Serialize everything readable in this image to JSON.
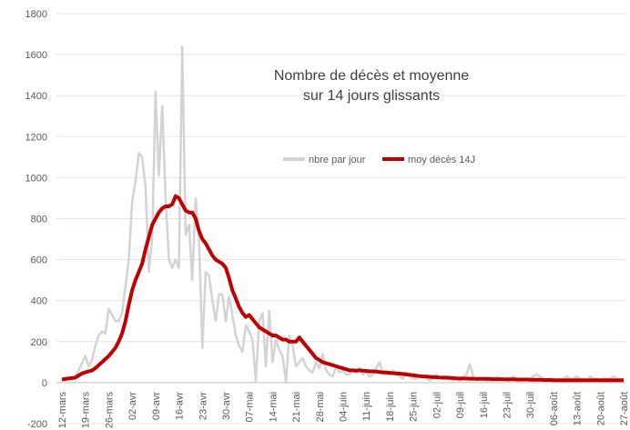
{
  "chart_data": {
    "type": "line",
    "title_lines": [
      "Nombre de décès et moyenne",
      "sur 14 jours glissants"
    ],
    "ylim": [
      -200,
      1800
    ],
    "ytick_step": 200,
    "xtick_labels": [
      "12-mars",
      "19-mars",
      "26-mars",
      "02-avr",
      "09-avr",
      "16-avr",
      "23-avr",
      "30-avr",
      "07-mai",
      "14-mai",
      "21-mai",
      "28-mai",
      "04-juin",
      "11-juin",
      "18-juin",
      "25-juin",
      "02-juil",
      "09-juil",
      "16-juil",
      "23-juil",
      "30-juil",
      "06-août",
      "13-août",
      "20-août",
      "27-août"
    ],
    "grid": true,
    "legend_position": "center-right",
    "colors": {
      "daily": "#d3d3d3",
      "avg": "#c00000"
    },
    "series": [
      {
        "name": "nbre par jour",
        "key": "daily",
        "start_index": 0,
        "values": [
          18,
          10,
          25,
          15,
          30,
          60,
          95,
          130,
          80,
          110,
          180,
          230,
          250,
          240,
          360,
          330,
          300,
          300,
          340,
          470,
          600,
          880,
          980,
          1120,
          1100,
          960,
          540,
          700,
          1420,
          1010,
          1350,
          900,
          600,
          560,
          600,
          560,
          1640,
          720,
          770,
          500,
          900,
          700,
          170,
          540,
          520,
          400,
          300,
          430,
          430,
          300,
          420,
          330,
          230,
          180,
          150,
          280,
          250,
          210,
          10,
          300,
          340,
          80,
          350,
          100,
          210,
          160,
          130,
          0,
          230,
          180,
          80,
          100,
          120,
          80,
          60,
          50,
          100,
          70,
          140,
          60,
          40,
          30,
          80,
          50,
          60,
          40,
          40,
          60,
          50,
          70,
          40,
          50,
          30,
          40,
          70,
          100,
          40,
          40,
          40,
          60,
          40,
          30,
          20,
          50,
          30,
          20,
          20,
          30,
          30,
          20,
          10,
          20,
          40,
          20,
          30,
          30,
          30,
          10,
          20,
          10,
          30,
          40,
          90,
          30,
          10,
          20,
          20,
          10,
          10,
          10,
          30,
          20,
          20,
          10,
          10,
          30,
          20,
          10,
          10,
          20,
          20,
          30,
          40,
          30,
          20,
          10,
          20,
          20,
          10,
          10,
          20,
          30,
          20,
          20,
          30,
          20,
          10,
          10,
          30,
          20,
          20,
          10,
          20,
          20,
          20,
          30,
          20
        ]
      },
      {
        "name": "moy décès 14J",
        "key": "avg",
        "start_index": 0,
        "values": [
          15,
          18,
          20,
          22,
          25,
          35,
          45,
          50,
          55,
          60,
          70,
          85,
          100,
          115,
          130,
          150,
          170,
          200,
          240,
          300,
          380,
          450,
          500,
          540,
          580,
          650,
          710,
          770,
          800,
          830,
          850,
          860,
          860,
          870,
          910,
          900,
          870,
          840,
          830,
          830,
          800,
          740,
          700,
          680,
          650,
          620,
          600,
          590,
          580,
          560,
          510,
          450,
          410,
          370,
          340,
          320,
          330,
          310,
          290,
          270,
          260,
          250,
          240,
          230,
          230,
          220,
          210,
          210,
          200,
          200,
          200,
          220,
          200,
          180,
          160,
          140,
          120,
          110,
          100,
          95,
          90,
          85,
          80,
          75,
          70,
          65,
          60,
          60,
          58,
          60,
          58,
          57,
          55,
          55,
          54,
          52,
          50,
          50,
          48,
          46,
          45,
          44,
          42,
          40,
          38,
          36,
          34,
          32,
          30,
          30,
          28,
          27,
          26,
          25,
          24,
          24,
          23,
          22,
          21,
          20,
          20,
          20,
          19,
          19,
          18,
          18,
          18,
          18,
          18,
          17,
          17,
          17,
          16,
          16,
          16,
          16,
          15,
          15,
          15,
          15,
          14,
          14,
          14,
          14,
          13,
          13,
          13,
          12,
          12,
          12,
          12,
          12,
          12,
          12,
          12,
          12,
          12,
          12,
          12,
          12,
          12,
          12,
          12,
          12,
          12,
          12,
          12,
          12,
          12
        ]
      }
    ]
  }
}
